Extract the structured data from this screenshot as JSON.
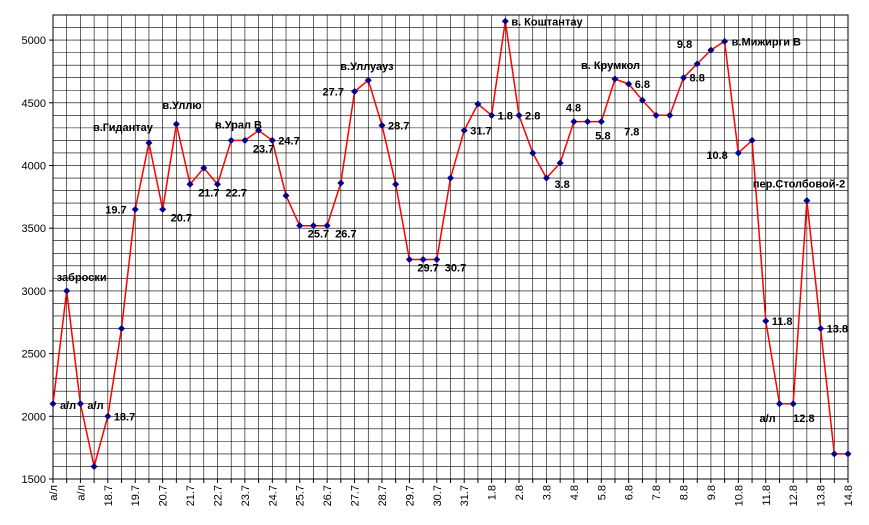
{
  "chart_data": {
    "type": "line",
    "title": "",
    "xlabel": "",
    "ylabel": "",
    "ylim": [
      1500,
      5200
    ],
    "yticks": [
      1500,
      2000,
      2500,
      3000,
      3500,
      4000,
      4500,
      5000
    ],
    "grid": true,
    "line_color": "#ff0000",
    "marker_color": "#00008b",
    "x_tick_labels": [
      "а/л",
      "",
      "а/л",
      "",
      "18.7",
      "",
      "19.7",
      "",
      "20.7",
      "",
      "21.7",
      "",
      "22.7",
      "",
      "23.7",
      "",
      "24.7",
      "",
      "25.7",
      "",
      "26.7",
      "",
      "27.7",
      "",
      "28.7",
      "",
      "29.7",
      "",
      "30.7",
      "",
      "31.7",
      "",
      "1.8",
      "",
      "2.8",
      "",
      "3.8",
      "",
      "4.8",
      "",
      "5.8",
      "",
      "6.8",
      "",
      "7.8",
      "",
      "8.8",
      "",
      "9.8",
      "",
      "10.8",
      "",
      "11.8",
      "",
      "12.8",
      "",
      "13.8",
      "",
      "14.8"
    ],
    "values": [
      2100,
      3000,
      2100,
      1600,
      2000,
      2700,
      3650,
      4180,
      3650,
      4330,
      3850,
      3980,
      3850,
      4200,
      4200,
      4280,
      4200,
      3760,
      3520,
      3520,
      3520,
      3860,
      4590,
      4680,
      4320,
      3850,
      3250,
      3250,
      3250,
      3900,
      4280,
      4490,
      4400,
      5150,
      4400,
      4100,
      3900,
      4020,
      4350,
      4350,
      4350,
      4690,
      4650,
      4520,
      4400,
      4400,
      4700,
      4810,
      4920,
      4990,
      4100,
      4200,
      2760,
      2100,
      2100,
      3720,
      2700,
      1700,
      1700
    ],
    "annotations": [
      {
        "text": "заброски",
        "index": 1
      },
      {
        "text": "а/л",
        "index": 0
      },
      {
        "text": "а/л",
        "index": 2
      },
      {
        "text": "18.7",
        "index": 4
      },
      {
        "text": "19.7",
        "index": 6
      },
      {
        "text": "в.Гидантау",
        "index": 7
      },
      {
        "text": "20.7",
        "index": 8
      },
      {
        "text": "в.Уллю",
        "index": 9
      },
      {
        "text": "21.7",
        "index": 10
      },
      {
        "text": "22.7",
        "index": 12
      },
      {
        "text": "в.Урал В",
        "index": 14
      },
      {
        "text": "23.7",
        "index": 14
      },
      {
        "text": "24.7",
        "index": 16
      },
      {
        "text": "25.7",
        "index": 18
      },
      {
        "text": "26.7",
        "index": 20
      },
      {
        "text": "27.7",
        "index": 22
      },
      {
        "text": "в.Уллуауз",
        "index": 23
      },
      {
        "text": "28.7",
        "index": 24
      },
      {
        "text": "29.7",
        "index": 26
      },
      {
        "text": "30.7",
        "index": 28
      },
      {
        "text": "31.7",
        "index": 30
      },
      {
        "text": "1.8",
        "index": 32
      },
      {
        "text": "в. Коштантау",
        "index": 33
      },
      {
        "text": "2.8",
        "index": 34
      },
      {
        "text": "3.8",
        "index": 36
      },
      {
        "text": "4.8",
        "index": 38
      },
      {
        "text": "5.8",
        "index": 40
      },
      {
        "text": "в. Крумкол",
        "index": 41
      },
      {
        "text": "6.8",
        "index": 42
      },
      {
        "text": "7.8",
        "index": 44
      },
      {
        "text": "8.8",
        "index": 46
      },
      {
        "text": "9.8",
        "index": 48
      },
      {
        "text": "в.Мижирги В",
        "index": 49
      },
      {
        "text": "10.8",
        "index": 50
      },
      {
        "text": "11.8",
        "index": 52
      },
      {
        "text": "а/л",
        "index": 53
      },
      {
        "text": "12.8",
        "index": 54
      },
      {
        "text": "пер.Столбовой-2",
        "index": 55
      },
      {
        "text": "13.8",
        "index": 56
      }
    ]
  }
}
